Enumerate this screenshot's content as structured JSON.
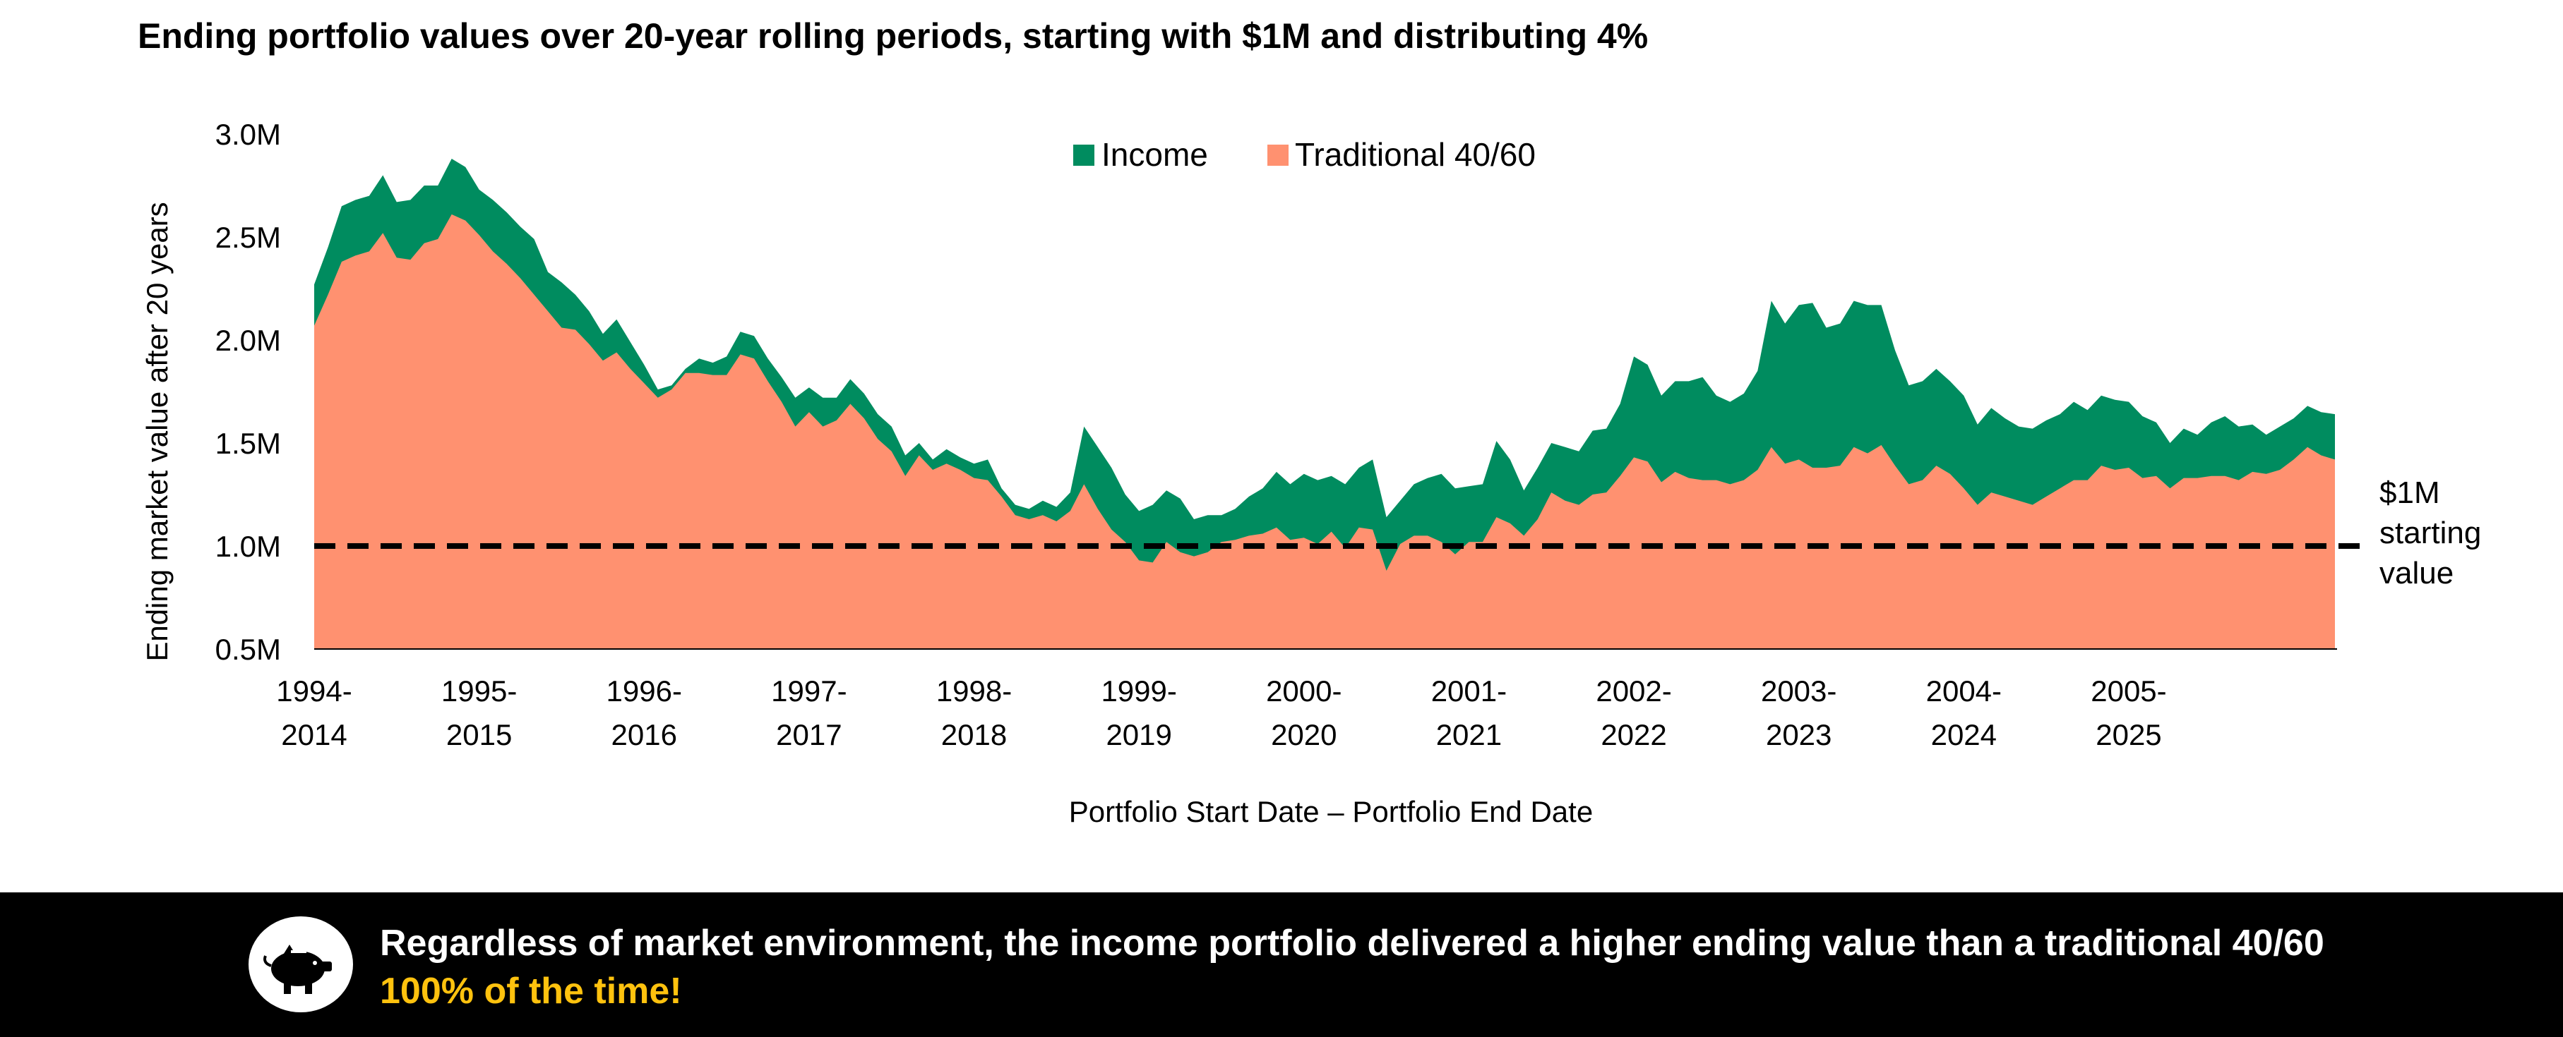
{
  "chart_data": {
    "type": "area",
    "title": "Ending portfolio values over 20-year rolling periods, starting with $1M and distributing 4%",
    "xlabel": "Portfolio Start Date – Portfolio End Date",
    "ylabel": "Ending market value after 20 years",
    "ylim": [
      0.5,
      3.0
    ],
    "ytick_labels": [
      "0.5M",
      "1.0M",
      "1.5M",
      "2.0M",
      "2.5M",
      "3.0M"
    ],
    "ytick_values": [
      0.5,
      1.0,
      1.5,
      2.0,
      2.5,
      3.0
    ],
    "xtick_labels": [
      {
        "line1": "1994-",
        "line2": "2014"
      },
      {
        "line1": "1995-",
        "line2": "2015"
      },
      {
        "line1": "1996-",
        "line2": "2016"
      },
      {
        "line1": "1997-",
        "line2": "2017"
      },
      {
        "line1": "1998-",
        "line2": "2018"
      },
      {
        "line1": "1999-",
        "line2": "2019"
      },
      {
        "line1": "2000-",
        "line2": "2020"
      },
      {
        "line1": "2001-",
        "line2": "2021"
      },
      {
        "line1": "2002-",
        "line2": "2022"
      },
      {
        "line1": "2003-",
        "line2": "2023"
      },
      {
        "line1": "2004-",
        "line2": "2024"
      },
      {
        "line1": "2005-",
        "line2": "2025"
      }
    ],
    "x_start": 1994.0,
    "x_step": 0.0833333,
    "legend": "top-center",
    "grid": false,
    "series": [
      {
        "name": "Income",
        "color": "#008c5f",
        "values": [
          2.27,
          2.45,
          2.65,
          2.68,
          2.7,
          2.8,
          2.67,
          2.68,
          2.75,
          2.75,
          2.88,
          2.84,
          2.73,
          2.68,
          2.62,
          2.55,
          2.49,
          2.33,
          2.28,
          2.22,
          2.14,
          2.03,
          2.1,
          1.99,
          1.88,
          1.76,
          1.78,
          1.86,
          1.91,
          1.89,
          1.92,
          2.04,
          2.02,
          1.91,
          1.82,
          1.72,
          1.77,
          1.72,
          1.72,
          1.81,
          1.74,
          1.64,
          1.58,
          1.44,
          1.5,
          1.42,
          1.47,
          1.43,
          1.4,
          1.42,
          1.28,
          1.2,
          1.18,
          1.22,
          1.19,
          1.26,
          1.58,
          1.48,
          1.38,
          1.25,
          1.17,
          1.2,
          1.27,
          1.23,
          1.13,
          1.15,
          1.15,
          1.18,
          1.24,
          1.28,
          1.36,
          1.3,
          1.35,
          1.32,
          1.34,
          1.3,
          1.38,
          1.42,
          1.14,
          1.22,
          1.3,
          1.33,
          1.35,
          1.28,
          1.29,
          1.3,
          1.51,
          1.42,
          1.27,
          1.38,
          1.5,
          1.48,
          1.46,
          1.56,
          1.57,
          1.69,
          1.92,
          1.88,
          1.73,
          1.8,
          1.8,
          1.82,
          1.73,
          1.7,
          1.74,
          1.85,
          2.19,
          2.08,
          2.17,
          2.18,
          2.06,
          2.08,
          2.19,
          2.17,
          2.17,
          1.95,
          1.78,
          1.8,
          1.86,
          1.8,
          1.73,
          1.59,
          1.67,
          1.62,
          1.58,
          1.57,
          1.61,
          1.64,
          1.7,
          1.66,
          1.73,
          1.71,
          1.7,
          1.63,
          1.6,
          1.5,
          1.57,
          1.54,
          1.6,
          1.63,
          1.58,
          1.59,
          1.54,
          1.58,
          1.62,
          1.68,
          1.65,
          1.64
        ]
      },
      {
        "name": "Traditional 40/60",
        "color": "#ff9170",
        "values": [
          2.07,
          2.22,
          2.38,
          2.41,
          2.43,
          2.52,
          2.4,
          2.39,
          2.47,
          2.49,
          2.61,
          2.58,
          2.51,
          2.43,
          2.37,
          2.3,
          2.22,
          2.14,
          2.06,
          2.05,
          1.98,
          1.9,
          1.94,
          1.86,
          1.79,
          1.72,
          1.76,
          1.84,
          1.84,
          1.83,
          1.83,
          1.93,
          1.91,
          1.8,
          1.7,
          1.58,
          1.65,
          1.58,
          1.61,
          1.69,
          1.62,
          1.52,
          1.46,
          1.34,
          1.44,
          1.37,
          1.4,
          1.37,
          1.33,
          1.32,
          1.24,
          1.15,
          1.13,
          1.15,
          1.12,
          1.17,
          1.3,
          1.18,
          1.08,
          1.02,
          0.93,
          0.92,
          1.02,
          0.97,
          0.95,
          0.97,
          1.02,
          1.03,
          1.05,
          1.06,
          1.09,
          1.03,
          1.04,
          1.01,
          1.07,
          0.99,
          1.09,
          1.08,
          0.88,
          1.01,
          1.05,
          1.05,
          1.02,
          0.96,
          1.02,
          1.02,
          1.14,
          1.11,
          1.05,
          1.13,
          1.26,
          1.22,
          1.2,
          1.25,
          1.26,
          1.34,
          1.43,
          1.41,
          1.31,
          1.36,
          1.33,
          1.32,
          1.32,
          1.3,
          1.32,
          1.37,
          1.48,
          1.4,
          1.42,
          1.38,
          1.38,
          1.39,
          1.48,
          1.45,
          1.49,
          1.39,
          1.3,
          1.32,
          1.39,
          1.35,
          1.28,
          1.2,
          1.26,
          1.24,
          1.22,
          1.2,
          1.24,
          1.28,
          1.32,
          1.32,
          1.39,
          1.37,
          1.38,
          1.33,
          1.34,
          1.28,
          1.33,
          1.33,
          1.34,
          1.34,
          1.32,
          1.36,
          1.35,
          1.37,
          1.42,
          1.48,
          1.44,
          1.42
        ]
      }
    ],
    "reference_line": {
      "value": 1.0,
      "style": "dashed",
      "color": "#000000",
      "label_lines": [
        "$1M",
        "starting",
        "value"
      ]
    }
  },
  "banner": {
    "text_main": "Regardless of market environment, the income portfolio delivered a higher ending value than a traditional 40/60 ",
    "text_highlight": "100% of the time!",
    "icon": "piggy-bank-icon",
    "highlight_color": "#ffc20e"
  }
}
